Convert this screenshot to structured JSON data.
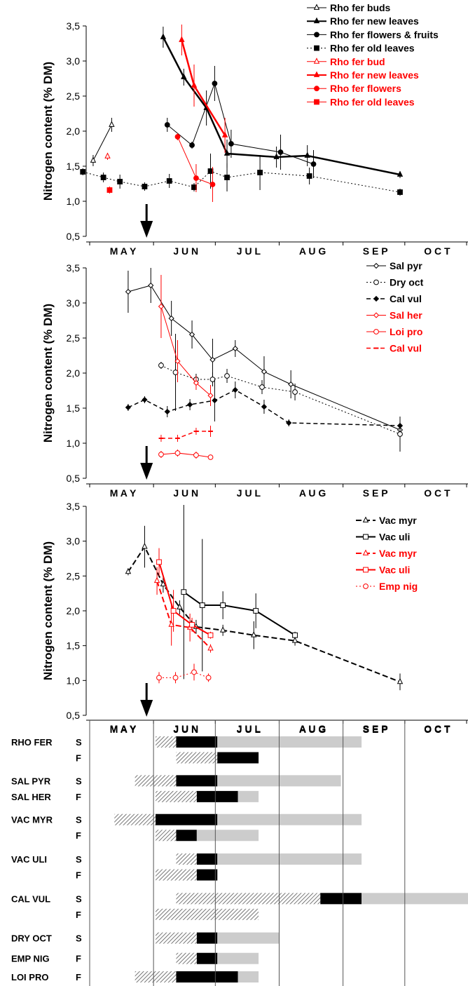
{
  "colors": {
    "black": "#000000",
    "red": "#ff0000",
    "bar_black": "#000000",
    "bar_gray": "#cccccc",
    "bar_hatch": "#555555"
  },
  "chart_data": [
    {
      "type": "line",
      "ylabel": "Nitrogen content (% DM)",
      "ylim": [
        0.5,
        3.5
      ],
      "yticks": [
        "0,5",
        "1,0",
        "1,5",
        "2,0",
        "2,5",
        "3,0",
        "3,5"
      ],
      "months": [
        "M A Y",
        "J U N",
        "J U L",
        "A U G",
        "S E P",
        "O C T"
      ],
      "arrow_day": 30,
      "legend_position": "top-right",
      "series": [
        {
          "name": "Rho fer buds",
          "color": "black",
          "dash": "",
          "marker": "triangle-open",
          "width": 1,
          "points": [
            [
              1,
              1.58,
              0.08
            ],
            [
              10,
              2.09,
              0.1
            ]
          ]
        },
        {
          "name": "Rho fer new leaves",
          "color": "black",
          "dash": "",
          "marker": "triangle",
          "width": 2.5,
          "points": [
            [
              35,
              3.34,
              0.15
            ],
            [
              45,
              2.77,
              0.12
            ],
            [
              56,
              2.33,
              0.25
            ],
            [
              66,
              1.68,
              0.2
            ],
            [
              90,
              1.63,
              0.15
            ],
            [
              105,
              1.65,
              0.15
            ],
            [
              150,
              1.38,
              0.05
            ]
          ]
        },
        {
          "name": "Rho fer flowers & fruits",
          "color": "black",
          "dash": "",
          "marker": "circle",
          "width": 1,
          "points": [
            [
              37,
              2.09,
              0.1
            ],
            [
              49,
              1.8,
              0.05
            ],
            [
              60,
              2.68,
              0.25
            ],
            [
              68,
              1.82,
              0.2
            ],
            [
              92,
              1.7,
              0.25
            ],
            [
              108,
              1.53,
              0.2
            ]
          ]
        },
        {
          "name": "Rho fer old leaves",
          "color": "black",
          "dash": "2,3",
          "marker": "square",
          "width": 1,
          "points": [
            [
              -4,
              1.42,
              0.05
            ],
            [
              6,
              1.34,
              0.07
            ],
            [
              14,
              1.28,
              0.1
            ],
            [
              26,
              1.21,
              0.06
            ],
            [
              38,
              1.29,
              0.1
            ],
            [
              50,
              1.2,
              0.06
            ],
            [
              58,
              1.43,
              0.25
            ],
            [
              66,
              1.34,
              0.2
            ],
            [
              82,
              1.41,
              0.25
            ],
            [
              106,
              1.36,
              0.12
            ],
            [
              150,
              1.13,
              0.05
            ]
          ]
        },
        {
          "name": "Rho fer bud",
          "color": "red",
          "dash": "",
          "marker": "triangle-open",
          "width": 1,
          "points": [
            [
              8,
              1.64,
              0.05
            ]
          ]
        },
        {
          "name": "Rho fer new leaves",
          "color": "red",
          "dash": "",
          "marker": "triangle",
          "width": 2.5,
          "points": [
            [
              44,
              3.3,
              0.22
            ],
            [
              50,
              2.65,
              0.3
            ],
            [
              65,
              1.94,
              0.25
            ]
          ]
        },
        {
          "name": "Rho fer flowers",
          "color": "red",
          "dash": "",
          "marker": "circle",
          "width": 1,
          "points": [
            [
              42,
              1.92,
              0.05
            ],
            [
              51,
              1.33,
              0.2
            ],
            [
              59,
              1.24,
              0.25
            ]
          ]
        },
        {
          "name": "Rho fer old leaves",
          "color": "red",
          "dash": "",
          "marker": "square",
          "width": 1,
          "points": [
            [
              9,
              1.16,
              0.05
            ]
          ]
        }
      ]
    },
    {
      "type": "line",
      "ylabel": "Nitrogen content (% DM)",
      "ylim": [
        0.5,
        3.5
      ],
      "yticks": [
        "0,5",
        "1,0",
        "1,5",
        "2,0",
        "2,5",
        "3,0",
        "3,5"
      ],
      "months": [
        "M A Y",
        "J U N",
        "J U L",
        "A U G",
        "S E P",
        "O C T"
      ],
      "arrow_day": 30,
      "legend_position": "top-right",
      "series": [
        {
          "name": "Sal pyr",
          "color": "black",
          "dash": "",
          "marker": "diamond-open",
          "width": 1,
          "points": [
            [
              18,
              3.16,
              0.3
            ],
            [
              29,
              3.25,
              0.25
            ],
            [
              39,
              2.78,
              0.25
            ],
            [
              49,
              2.55,
              0.2
            ],
            [
              59,
              2.19,
              0.3
            ],
            [
              70,
              2.35,
              0.12
            ],
            [
              84,
              2.02,
              0.22
            ],
            [
              97,
              1.84,
              0.2
            ],
            [
              150,
              1.19,
              0.1
            ]
          ]
        },
        {
          "name": "Dry oct",
          "color": "black",
          "dash": "2,3",
          "marker": "circle-open",
          "width": 1,
          "points": [
            [
              34,
              2.11,
              0.05
            ],
            [
              41,
              2.01,
              0.55
            ],
            [
              51,
              1.91,
              0.08
            ],
            [
              59,
              1.91,
              0.1
            ],
            [
              66,
              1.96,
              0.1
            ],
            [
              83,
              1.8,
              0.1
            ],
            [
              99,
              1.73,
              0.12
            ],
            [
              150,
              1.13,
              0.25
            ]
          ]
        },
        {
          "name": "Cal vul",
          "color": "black",
          "dash": "6,4",
          "marker": "diamond",
          "width": 1.5,
          "points": [
            [
              18,
              1.51,
              0.05
            ],
            [
              26,
              1.62,
              0.05
            ],
            [
              37,
              1.45,
              0.08
            ],
            [
              48,
              1.55,
              0.08
            ],
            [
              60,
              1.61,
              0.3
            ],
            [
              70,
              1.76,
              0.12
            ],
            [
              84,
              1.52,
              0.1
            ],
            [
              96,
              1.29,
              0.05
            ],
            [
              150,
              1.25,
              0.05
            ]
          ]
        },
        {
          "name": "Sal her",
          "color": "red",
          "dash": "",
          "marker": "diamond-open",
          "width": 1,
          "points": [
            [
              34,
              2.95,
              0.45
            ],
            [
              42,
              2.17,
              0.3
            ],
            [
              51,
              1.86,
              0.1
            ],
            [
              58,
              1.68,
              0.15
            ]
          ]
        },
        {
          "name": "Loi pro",
          "color": "red",
          "dash": "",
          "marker": "circle-open",
          "width": 1,
          "points": [
            [
              34,
              0.84,
              0.05
            ],
            [
              42,
              0.86,
              0.05
            ],
            [
              51,
              0.83,
              0.05
            ],
            [
              58,
              0.8,
              0.03
            ]
          ]
        },
        {
          "name": "Cal vul",
          "color": "red",
          "dash": "6,4",
          "marker": "dash",
          "width": 1.5,
          "points": [
            [
              34,
              1.07,
              0.05
            ],
            [
              42,
              1.07,
              0.05
            ],
            [
              51,
              1.17,
              0.05
            ],
            [
              58,
              1.17,
              0.08
            ]
          ]
        }
      ]
    },
    {
      "type": "line",
      "ylabel": "Nitrogen content (% DM)",
      "ylim": [
        0.5,
        3.5
      ],
      "yticks": [
        "0,5",
        "1,0",
        "1,5",
        "2,0",
        "2,5",
        "3,0",
        "3,5"
      ],
      "months": [
        "M A Y",
        "J U N",
        "J U L",
        "A U G",
        "S E P",
        "O C T"
      ],
      "arrow_day": 30,
      "legend_position": "top-right",
      "series": [
        {
          "name": "Vac myr",
          "color": "black",
          "dash": "8,4",
          "marker": "triangle-open",
          "width": 2,
          "points": [
            [
              18,
              2.56,
              0.05
            ],
            [
              26,
              2.92,
              0.3
            ],
            [
              35,
              2.38,
              0.12
            ],
            [
              43,
              2.05,
              0.1
            ],
            [
              51,
              1.77,
              0.1
            ],
            [
              64,
              1.72,
              0.08
            ],
            [
              79,
              1.65,
              0.2
            ],
            [
              99,
              1.57,
              0.07
            ],
            [
              150,
              0.98,
              0.12
            ]
          ]
        },
        {
          "name": "Vac uli",
          "color": "black",
          "dash": "",
          "marker": "square-open",
          "width": 2,
          "points": [
            [
              45,
              2.27,
              1.25
            ],
            [
              54,
              2.08,
              0.95
            ],
            [
              64,
              2.08,
              0.2
            ],
            [
              80,
              2.0,
              0.25
            ],
            [
              99,
              1.65,
              0.05
            ]
          ]
        },
        {
          "name": "Vac myr",
          "color": "red",
          "dash": "8,4",
          "marker": "triangle-open",
          "width": 2,
          "points": [
            [
              32,
              2.43,
              0.2
            ],
            [
              39,
              1.8,
              0.3
            ],
            [
              48,
              1.76,
              0.2
            ],
            [
              58,
              1.46,
              0.06
            ]
          ]
        },
        {
          "name": "Vac uli",
          "color": "red",
          "dash": "",
          "marker": "square-open",
          "width": 2,
          "points": [
            [
              33,
              2.7,
              0.2
            ],
            [
              40,
              2.0,
              0.3
            ],
            [
              49,
              1.8,
              0.1
            ],
            [
              58,
              1.65,
              0.05
            ]
          ]
        },
        {
          "name": "Emp nig",
          "color": "red",
          "dash": "2,3",
          "marker": "circle-open",
          "width": 1,
          "points": [
            [
              33,
              1.04,
              0.08
            ],
            [
              41,
              1.04,
              0.08
            ],
            [
              50,
              1.12,
              0.12
            ],
            [
              57,
              1.04,
              0.06
            ]
          ]
        }
      ]
    },
    {
      "type": "gantt",
      "months": [
        "M A Y",
        "J U N",
        "J U L",
        "A U G",
        "S E P",
        "O C T"
      ],
      "legend_position": "none",
      "species": [
        {
          "name": "RHO FER",
          "rows": [
            {
              "code": "S",
              "segments": [
                [
                  32,
                  42,
                  "hatch"
                ],
                [
                  42,
                  62,
                  "black"
                ],
                [
                  62,
                  132,
                  "gray"
                ]
              ]
            },
            {
              "code": "F",
              "segments": [
                [
                  42,
                  62,
                  "hatch"
                ],
                [
                  62,
                  82,
                  "black"
                ]
              ]
            }
          ]
        },
        {
          "name": "SAL PYR",
          "rows": [
            {
              "code": "S",
              "segments": [
                [
                  22,
                  32,
                  "hatch"
                ],
                [
                  32,
                  42,
                  "hatch"
                ],
                [
                  42,
                  62,
                  "black"
                ],
                [
                  62,
                  122,
                  "gray"
                ]
              ]
            }
          ]
        },
        {
          "name": "SAL HER",
          "rows": [
            {
              "code": "F",
              "segments": [
                [
                  32,
                  52,
                  "hatch"
                ],
                [
                  52,
                  72,
                  "black"
                ],
                [
                  72,
                  82,
                  "gray"
                ]
              ]
            }
          ]
        },
        {
          "name": "VAC MYR",
          "rows": [
            {
              "code": "S",
              "segments": [
                [
                  12,
                  32,
                  "hatch"
                ],
                [
                  32,
                  62,
                  "black"
                ],
                [
                  62,
                  132,
                  "gray"
                ]
              ]
            },
            {
              "code": "F",
              "segments": [
                [
                  32,
                  42,
                  "hatch"
                ],
                [
                  42,
                  52,
                  "black"
                ],
                [
                  52,
                  82,
                  "gray"
                ]
              ]
            }
          ]
        },
        {
          "name": "VAC ULI",
          "rows": [
            {
              "code": "S",
              "segments": [
                [
                  42,
                  52,
                  "hatch"
                ],
                [
                  52,
                  62,
                  "black"
                ],
                [
                  62,
                  132,
                  "gray"
                ]
              ]
            },
            {
              "code": "F",
              "segments": [
                [
                  32,
                  52,
                  "hatch"
                ],
                [
                  52,
                  62,
                  "black"
                ]
              ]
            }
          ]
        },
        {
          "name": "CAL VUL",
          "rows": [
            {
              "code": "S",
              "segments": [
                [
                  42,
                  112,
                  "hatch"
                ],
                [
                  112,
                  132,
                  "black"
                ],
                [
                  132,
                  212,
                  "gray"
                ]
              ]
            },
            {
              "code": "F",
              "segments": [
                [
                  32,
                  82,
                  "hatch"
                ]
              ]
            }
          ]
        },
        {
          "name": "DRY OCT",
          "rows": [
            {
              "code": "S",
              "segments": [
                [
                  32,
                  52,
                  "hatch"
                ],
                [
                  52,
                  62,
                  "black"
                ],
                [
                  62,
                  92,
                  "gray"
                ]
              ]
            }
          ]
        },
        {
          "name": "EMP NIG",
          "rows": [
            {
              "code": "F",
              "segments": [
                [
                  42,
                  52,
                  "hatch"
                ],
                [
                  52,
                  62,
                  "black"
                ],
                [
                  62,
                  82,
                  "gray"
                ]
              ]
            }
          ]
        },
        {
          "name": "LOI PRO",
          "rows": [
            {
              "code": "F",
              "segments": [
                [
                  22,
                  42,
                  "hatch"
                ],
                [
                  42,
                  72,
                  "black"
                ],
                [
                  72,
                  82,
                  "gray"
                ]
              ]
            }
          ]
        }
      ]
    }
  ]
}
